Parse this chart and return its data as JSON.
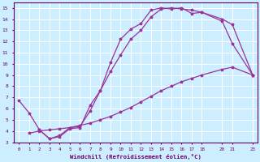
{
  "title": "",
  "xlabel": "Windchill (Refroidissement éolien,°C)",
  "ylabel": "",
  "bg_color": "#cceeff",
  "line_color": "#993399",
  "grid_color": "#ffffff",
  "xlim": [
    -0.5,
    23.5
  ],
  "ylim": [
    3,
    15.5
  ],
  "xticks": [
    0,
    1,
    2,
    3,
    4,
    5,
    6,
    7,
    8,
    9,
    10,
    11,
    12,
    13,
    14,
    15,
    16,
    17,
    18,
    20,
    21,
    23
  ],
  "yticks": [
    3,
    4,
    5,
    6,
    7,
    8,
    9,
    10,
    11,
    12,
    13,
    14,
    15
  ],
  "line1_x": [
    0,
    1,
    2,
    3,
    4,
    5,
    6,
    7,
    8,
    9,
    10,
    11,
    12,
    13,
    14,
    15,
    16,
    17,
    18,
    20,
    21,
    23
  ],
  "line1_y": [
    6.7,
    5.6,
    4.1,
    3.3,
    3.5,
    4.2,
    4.3,
    6.3,
    7.6,
    10.1,
    12.2,
    13.1,
    13.6,
    14.8,
    15.0,
    14.9,
    15.0,
    14.5,
    14.6,
    13.8,
    11.8,
    9.0
  ],
  "line2_x": [
    2,
    3,
    4,
    5,
    6,
    7,
    8,
    9,
    10,
    11,
    12,
    13,
    14,
    15,
    16,
    17,
    18,
    20,
    21,
    23
  ],
  "line2_y": [
    4.1,
    3.3,
    3.6,
    4.3,
    4.4,
    5.8,
    7.6,
    9.3,
    10.8,
    12.2,
    13.0,
    14.2,
    14.9,
    15.0,
    14.9,
    14.8,
    14.6,
    14.0,
    13.5,
    9.0
  ],
  "line3_x": [
    1,
    2,
    3,
    4,
    5,
    6,
    7,
    8,
    9,
    10,
    11,
    12,
    13,
    14,
    15,
    16,
    17,
    18,
    20,
    21,
    23
  ],
  "line3_y": [
    3.8,
    4.0,
    4.1,
    4.2,
    4.3,
    4.5,
    4.7,
    5.0,
    5.3,
    5.7,
    6.1,
    6.6,
    7.1,
    7.6,
    8.0,
    8.4,
    8.7,
    9.0,
    9.5,
    9.7,
    9.0
  ]
}
